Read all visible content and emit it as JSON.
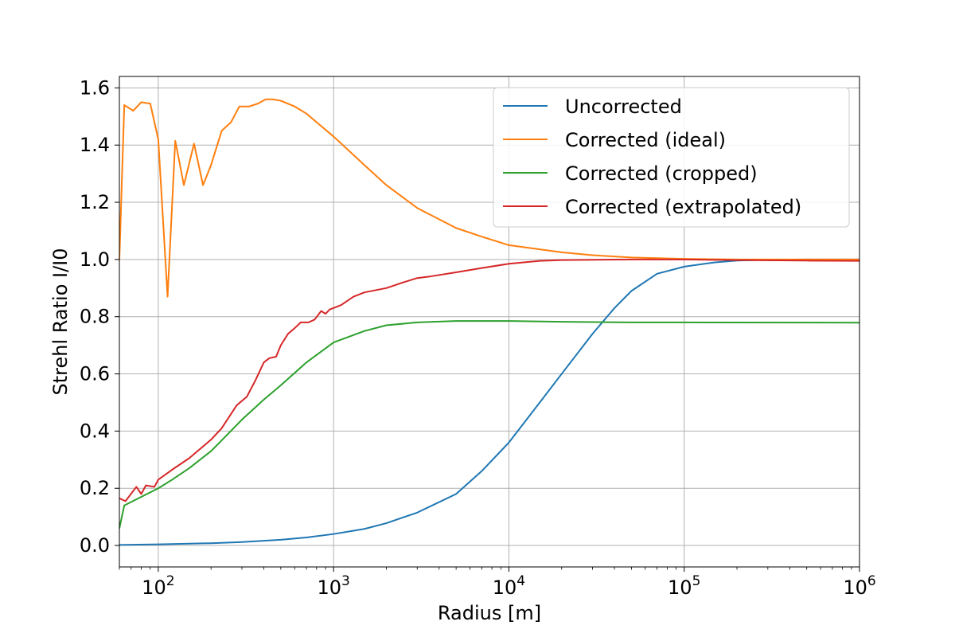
{
  "chart_data": {
    "type": "line",
    "xlabel": "Radius [m]",
    "ylabel": "Strehl Ratio I/I0",
    "xscale": "log",
    "xlim": [
      60,
      1000000
    ],
    "ylim": [
      -0.075,
      1.64
    ],
    "grid": true,
    "legend_position": "upper right",
    "x_ticks": [
      {
        "base": "10",
        "exp": "2",
        "value": 100
      },
      {
        "base": "10",
        "exp": "3",
        "value": 1000
      },
      {
        "base": "10",
        "exp": "4",
        "value": 10000
      },
      {
        "base": "10",
        "exp": "5",
        "value": 100000
      },
      {
        "base": "10",
        "exp": "6",
        "value": 1000000
      }
    ],
    "y_ticks": [
      {
        "label": "0.0",
        "value": 0.0
      },
      {
        "label": "0.2",
        "value": 0.2
      },
      {
        "label": "0.4",
        "value": 0.4
      },
      {
        "label": "0.6",
        "value": 0.6
      },
      {
        "label": "0.8",
        "value": 0.8
      },
      {
        "label": "1.0",
        "value": 1.0
      },
      {
        "label": "1.2",
        "value": 1.2
      },
      {
        "label": "1.4",
        "value": 1.4
      },
      {
        "label": "1.6",
        "value": 1.6
      }
    ],
    "series": [
      {
        "name": "Uncorrected",
        "color": "#1f77b4",
        "points": [
          [
            60,
            0.002
          ],
          [
            100,
            0.004
          ],
          [
            200,
            0.008
          ],
          [
            300,
            0.012
          ],
          [
            500,
            0.02
          ],
          [
            700,
            0.028
          ],
          [
            1000,
            0.04
          ],
          [
            1500,
            0.058
          ],
          [
            2000,
            0.078
          ],
          [
            3000,
            0.115
          ],
          [
            5000,
            0.18
          ],
          [
            7000,
            0.26
          ],
          [
            10000,
            0.36
          ],
          [
            15000,
            0.5
          ],
          [
            20000,
            0.6
          ],
          [
            30000,
            0.74
          ],
          [
            40000,
            0.83
          ],
          [
            50000,
            0.89
          ],
          [
            70000,
            0.95
          ],
          [
            100000,
            0.975
          ],
          [
            150000,
            0.99
          ],
          [
            200000,
            0.996
          ],
          [
            300000,
            0.999
          ],
          [
            500000,
            1.0
          ],
          [
            1000000,
            1.0
          ]
        ]
      },
      {
        "name": "Corrected (ideal)",
        "color": "#ff7f0e",
        "points": [
          [
            60,
            1.0
          ],
          [
            64,
            1.54
          ],
          [
            72,
            1.52
          ],
          [
            80,
            1.55
          ],
          [
            90,
            1.545
          ],
          [
            100,
            1.42
          ],
          [
            113,
            0.87
          ],
          [
            125,
            1.415
          ],
          [
            140,
            1.26
          ],
          [
            160,
            1.405
          ],
          [
            180,
            1.26
          ],
          [
            200,
            1.33
          ],
          [
            230,
            1.45
          ],
          [
            260,
            1.48
          ],
          [
            290,
            1.535
          ],
          [
            330,
            1.535
          ],
          [
            370,
            1.545
          ],
          [
            410,
            1.56
          ],
          [
            450,
            1.56
          ],
          [
            500,
            1.555
          ],
          [
            600,
            1.535
          ],
          [
            700,
            1.51
          ],
          [
            800,
            1.48
          ],
          [
            1000,
            1.43
          ],
          [
            1500,
            1.33
          ],
          [
            2000,
            1.26
          ],
          [
            3000,
            1.18
          ],
          [
            5000,
            1.11
          ],
          [
            7000,
            1.08
          ],
          [
            10000,
            1.05
          ],
          [
            20000,
            1.025
          ],
          [
            30000,
            1.015
          ],
          [
            50000,
            1.007
          ],
          [
            100000,
            1.002
          ],
          [
            200000,
            1.0
          ],
          [
            500000,
            1.0
          ],
          [
            1000000,
            1.0
          ]
        ]
      },
      {
        "name": "Corrected (cropped)",
        "color": "#2ca02c",
        "points": [
          [
            60,
            0.06
          ],
          [
            64,
            0.14
          ],
          [
            80,
            0.17
          ],
          [
            100,
            0.2
          ],
          [
            120,
            0.23
          ],
          [
            150,
            0.27
          ],
          [
            200,
            0.33
          ],
          [
            250,
            0.39
          ],
          [
            300,
            0.44
          ],
          [
            400,
            0.51
          ],
          [
            500,
            0.56
          ],
          [
            700,
            0.64
          ],
          [
            1000,
            0.71
          ],
          [
            1500,
            0.75
          ],
          [
            2000,
            0.77
          ],
          [
            3000,
            0.78
          ],
          [
            5000,
            0.785
          ],
          [
            10000,
            0.785
          ],
          [
            20000,
            0.782
          ],
          [
            50000,
            0.78
          ],
          [
            100000,
            0.78
          ],
          [
            1000000,
            0.779
          ]
        ]
      },
      {
        "name": "Corrected (extrapolated)",
        "color": "#d62728",
        "points": [
          [
            60,
            0.165
          ],
          [
            65,
            0.155
          ],
          [
            75,
            0.205
          ],
          [
            80,
            0.18
          ],
          [
            85,
            0.21
          ],
          [
            95,
            0.205
          ],
          [
            100,
            0.23
          ],
          [
            120,
            0.265
          ],
          [
            150,
            0.305
          ],
          [
            200,
            0.37
          ],
          [
            230,
            0.41
          ],
          [
            280,
            0.49
          ],
          [
            320,
            0.52
          ],
          [
            360,
            0.58
          ],
          [
            400,
            0.64
          ],
          [
            430,
            0.655
          ],
          [
            470,
            0.66
          ],
          [
            500,
            0.7
          ],
          [
            550,
            0.74
          ],
          [
            600,
            0.76
          ],
          [
            650,
            0.78
          ],
          [
            720,
            0.78
          ],
          [
            780,
            0.79
          ],
          [
            850,
            0.82
          ],
          [
            900,
            0.81
          ],
          [
            950,
            0.825
          ],
          [
            1100,
            0.84
          ],
          [
            1300,
            0.87
          ],
          [
            1500,
            0.885
          ],
          [
            2000,
            0.9
          ],
          [
            2500,
            0.92
          ],
          [
            3000,
            0.935
          ],
          [
            3500,
            0.94
          ],
          [
            5000,
            0.955
          ],
          [
            7000,
            0.97
          ],
          [
            10000,
            0.985
          ],
          [
            15000,
            0.995
          ],
          [
            20000,
            0.998
          ],
          [
            50000,
            1.0
          ],
          [
            100000,
            1.0
          ],
          [
            200000,
            0.998
          ],
          [
            500000,
            0.996
          ],
          [
            1000000,
            0.995
          ]
        ]
      }
    ]
  }
}
